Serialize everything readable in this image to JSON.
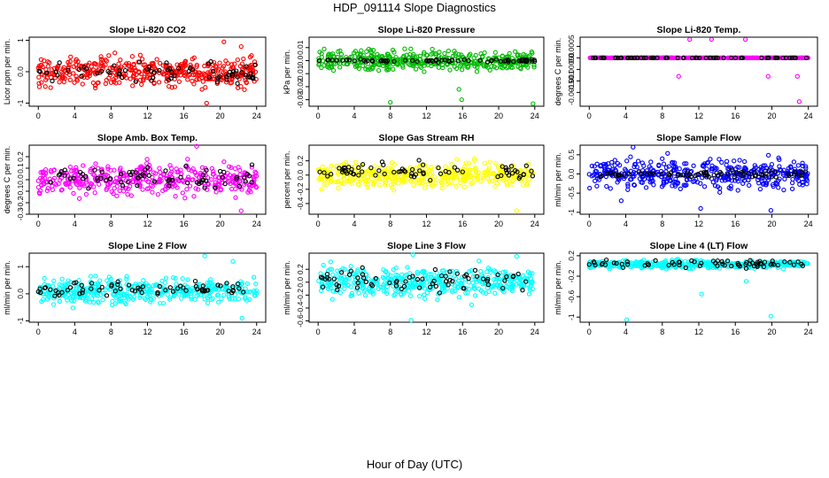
{
  "title": "HDP_091114  Slope Diagnostics",
  "xlabel": "Hour of Day (UTC)",
  "x_ticks": [
    0,
    4,
    8,
    12,
    16,
    20,
    24
  ],
  "marker_style": "open circles",
  "overlay_color": "#000000",
  "chart_data": [
    {
      "type": "scatter",
      "title": "Slope Li-820 CO2",
      "ylabel": "Licor ppm per min.",
      "color": "#ff0000",
      "xlim": [
        -1,
        25
      ],
      "ylim": [
        -1.1,
        1.1
      ],
      "yticks": [
        -1.0,
        0.0,
        1.0
      ],
      "series": [
        {
          "color": "#ff0000",
          "center": 0.0,
          "spread": 0.25
        },
        {
          "color": "#000000",
          "center": -0.05,
          "spread": 0.2
        }
      ],
      "outliers": [
        {
          "x": 18.5,
          "y": -1.0
        },
        {
          "x": 20.4,
          "y": 0.95
        },
        {
          "x": 22.3,
          "y": 0.8
        }
      ]
    },
    {
      "type": "scatter",
      "title": "Slope Li-820 Pressure",
      "ylabel": "kPa per min.",
      "color": "#00bb00",
      "xlim": [
        -1,
        25
      ],
      "ylim": [
        -0.035,
        0.018
      ],
      "yticks": [
        -0.03,
        -0.02,
        -0.01,
        0.0,
        0.01
      ],
      "series": [
        {
          "color": "#00bb00",
          "center": 0.0,
          "spread": 0.004
        },
        {
          "color": "#000000",
          "center": 0.0,
          "spread": 0.0008
        }
      ],
      "outliers": [
        {
          "x": 8.0,
          "y": -0.032
        },
        {
          "x": 15.9,
          "y": -0.03
        },
        {
          "x": 23.8,
          "y": -0.033
        },
        {
          "x": 15.6,
          "y": -0.022
        }
      ]
    },
    {
      "type": "scatter",
      "title": "Slope Li-820 Temp.",
      "ylabel": "degrees C per min.",
      "color": "#ff00ff",
      "xlim": [
        -1,
        25
      ],
      "ylim": [
        -0.0021,
        0.0009
      ],
      "yticks": [
        -0.0015,
        -0.001,
        -0.0005,
        0.0,
        0.0005
      ],
      "series": [
        {
          "color": "#ff00ff",
          "center": 0.0,
          "spread": 0.0
        },
        {
          "color": "#000000",
          "center": 0.0,
          "spread": 0.0
        }
      ],
      "outliers": [
        {
          "x": 9.8,
          "y": -0.0008
        },
        {
          "x": 11.0,
          "y": 0.0008
        },
        {
          "x": 13.4,
          "y": 0.0008
        },
        {
          "x": 17.1,
          "y": 0.0008
        },
        {
          "x": 19.6,
          "y": -0.0008
        },
        {
          "x": 22.8,
          "y": -0.0008
        },
        {
          "x": 23.0,
          "y": -0.0019
        }
      ]
    },
    {
      "type": "scatter",
      "title": "Slope Amb. Box Temp.",
      "ylabel": "degrees C per min.",
      "color": "#ff00ff",
      "xlim": [
        -1,
        25
      ],
      "ylim": [
        -0.3,
        0.3
      ],
      "yticks": [
        -0.3,
        -0.2,
        -0.1,
        0.0,
        0.1,
        0.2
      ],
      "series": [
        {
          "color": "#ff00ff",
          "center": 0.0,
          "spread": 0.07
        },
        {
          "color": "#000000",
          "center": 0.02,
          "spread": 0.06
        }
      ],
      "outliers": [
        {
          "x": 17.4,
          "y": 0.29
        },
        {
          "x": 22.3,
          "y": -0.27
        }
      ]
    },
    {
      "type": "scatter",
      "title": "Slope Gas Stream RH",
      "ylabel": "percent per min.",
      "color": "#ffff00",
      "xlim": [
        -1,
        25
      ],
      "ylim": [
        -0.55,
        0.42
      ],
      "yticks": [
        -0.4,
        -0.2,
        0.0,
        0.2
      ],
      "series": [
        {
          "color": "#ffff00",
          "center": 0.0,
          "spread": 0.09
        },
        {
          "color": "#000000",
          "center": 0.05,
          "spread": 0.08
        }
      ],
      "outliers": [
        {
          "x": 22.0,
          "y": -0.5
        },
        {
          "x": 0.4,
          "y": -0.2
        }
      ]
    },
    {
      "type": "scatter",
      "title": "Slope Sample Flow",
      "ylabel": "ml/min per min.",
      "color": "#0000ff",
      "xlim": [
        -1,
        25
      ],
      "ylim": [
        -1.05,
        0.75
      ],
      "yticks": [
        -1.0,
        -0.5,
        0.0,
        0.5
      ],
      "series": [
        {
          "color": "#0000ff",
          "center": 0.0,
          "spread": 0.2
        },
        {
          "color": "#000000",
          "center": 0.0,
          "spread": 0.06
        }
      ],
      "outliers": [
        {
          "x": 4.8,
          "y": 0.7
        },
        {
          "x": 12.2,
          "y": -0.9
        },
        {
          "x": 19.9,
          "y": -0.95
        },
        {
          "x": 3.5,
          "y": -0.7
        }
      ]
    },
    {
      "type": "scatter",
      "title": "Slope Line 2 Flow",
      "ylabel": "ml/min per min.",
      "color": "#00ffff",
      "xlim": [
        -1,
        25
      ],
      "ylim": [
        -1.05,
        1.5
      ],
      "yticks": [
        -1.0,
        0.0,
        1.0
      ],
      "series": [
        {
          "color": "#00ffff",
          "center": 0.1,
          "spread": 0.25
        },
        {
          "color": "#000000",
          "center": 0.2,
          "spread": 0.15
        }
      ],
      "outliers": [
        {
          "x": 18.3,
          "y": 1.4
        },
        {
          "x": 22.4,
          "y": -0.9
        },
        {
          "x": 21.4,
          "y": 1.2
        }
      ]
    },
    {
      "type": "scatter",
      "title": "Slope Line 3 Flow",
      "ylabel": "ml/min per min.",
      "color": "#00ffff",
      "xlim": [
        -1,
        25
      ],
      "ylim": [
        -0.62,
        0.45
      ],
      "yticks": [
        -0.6,
        -0.4,
        -0.2,
        0.0,
        0.2
      ],
      "series": [
        {
          "color": "#00ffff",
          "center": 0.0,
          "spread": 0.12
        },
        {
          "color": "#000000",
          "center": 0.02,
          "spread": 0.12
        }
      ],
      "outliers": [
        {
          "x": 10.3,
          "y": -0.59
        },
        {
          "x": 10.5,
          "y": 0.43
        },
        {
          "x": 22.0,
          "y": 0.4
        },
        {
          "x": 17.0,
          "y": -0.35
        }
      ]
    },
    {
      "type": "scatter",
      "title": "Slope Line 4 (LT) Flow",
      "ylabel": "ml/min per min.",
      "color": "#00ffff",
      "xlim": [
        -1,
        25
      ],
      "ylim": [
        -1.1,
        0.25
      ],
      "yticks": [
        -1.0,
        -0.6,
        -0.2,
        0.2
      ],
      "series": [
        {
          "color": "#00ffff",
          "center": 0.03,
          "spread": 0.04
        },
        {
          "color": "#000000",
          "center": 0.05,
          "spread": 0.05
        }
      ],
      "outliers": [
        {
          "x": 4.1,
          "y": -1.05
        },
        {
          "x": 19.9,
          "y": -0.98
        },
        {
          "x": 12.3,
          "y": -0.55
        },
        {
          "x": 17.2,
          "y": -0.3
        }
      ]
    }
  ]
}
